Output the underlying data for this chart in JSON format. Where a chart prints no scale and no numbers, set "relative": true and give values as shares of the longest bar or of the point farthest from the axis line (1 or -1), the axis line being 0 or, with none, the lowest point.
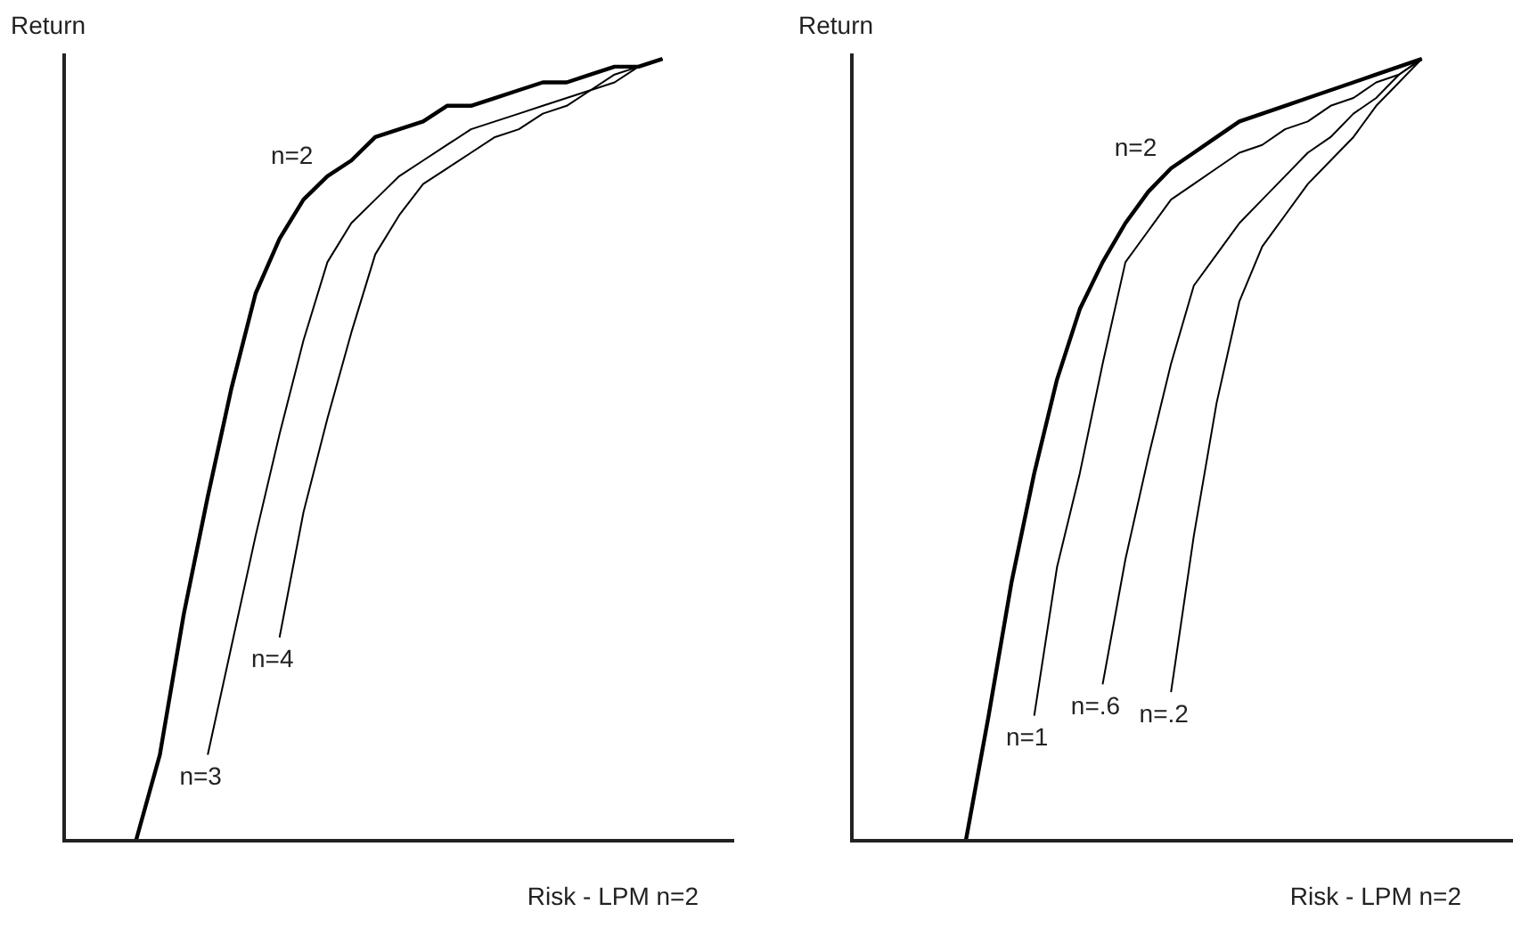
{
  "chart_data": [
    {
      "type": "line",
      "relative": true,
      "ylabel": "Return",
      "xlabel": "Risk - LPM n=2",
      "categories": [
        null,
        null,
        null,
        null,
        null,
        null,
        null,
        null,
        null,
        null,
        null,
        null,
        null,
        null,
        null,
        null,
        null,
        null,
        null,
        null,
        null,
        null,
        null,
        null,
        null,
        null,
        null,
        null,
        null
      ],
      "series": [
        {
          "name": "n=2",
          "color": "#000000",
          "values": [
            null,
            null,
            null,
            0,
            0.11,
            0.29,
            0.44,
            0.58,
            0.7,
            0.77,
            0.82,
            0.85,
            0.87,
            0.9,
            0.91,
            0.92,
            0.94,
            0.94,
            0.95,
            0.96,
            0.97,
            0.97,
            0.98,
            0.99,
            0.99,
            1,
            null,
            null,
            null
          ]
        },
        {
          "name": "n=3",
          "color": "#000000",
          "values": [
            null,
            null,
            null,
            null,
            null,
            null,
            0.11,
            0.25,
            0.39,
            0.52,
            0.64,
            0.74,
            0.79,
            0.82,
            0.85,
            0.87,
            0.89,
            0.91,
            0.92,
            0.93,
            0.94,
            0.95,
            0.96,
            0.98,
            0.99,
            1,
            null,
            null,
            null
          ]
        },
        {
          "name": "n=4",
          "color": "#000000",
          "values": [
            null,
            null,
            null,
            null,
            null,
            null,
            null,
            null,
            null,
            0.26,
            0.42,
            0.54,
            0.65,
            0.75,
            0.8,
            0.84,
            0.86,
            0.88,
            0.9,
            0.91,
            0.93,
            0.94,
            0.96,
            0.97,
            0.99,
            1,
            null,
            null,
            null
          ]
        }
      ]
    },
    {
      "type": "line",
      "relative": true,
      "ylabel": "Return",
      "xlabel": "Risk - LPM n=2",
      "categories": [
        null,
        null,
        null,
        null,
        null,
        null,
        null,
        null,
        null,
        null,
        null,
        null,
        null,
        null,
        null,
        null,
        null,
        null,
        null,
        null,
        null,
        null,
        null,
        null,
        null,
        null,
        null,
        null,
        null,
        null
      ],
      "series": [
        {
          "name": "n=2",
          "color": "#000000",
          "values": [
            null,
            null,
            null,
            null,
            null,
            0,
            0.16,
            0.33,
            0.47,
            0.59,
            0.68,
            0.74,
            0.79,
            0.83,
            0.86,
            0.88,
            0.9,
            0.92,
            0.93,
            0.94,
            0.95,
            0.96,
            0.97,
            0.98,
            0.99,
            1,
            null,
            null,
            null,
            null
          ]
        },
        {
          "name": "n=1",
          "color": "#000000",
          "values": [
            null,
            null,
            null,
            null,
            null,
            null,
            null,
            null,
            0.16,
            0.35,
            0.47,
            0.61,
            0.74,
            0.78,
            0.82,
            0.84,
            0.86,
            0.88,
            0.89,
            0.91,
            0.92,
            0.94,
            0.95,
            0.97,
            0.98,
            1,
            null,
            null,
            null,
            null
          ]
        },
        {
          "name": "n=.6",
          "color": "#000000",
          "values": [
            null,
            null,
            null,
            null,
            null,
            null,
            null,
            null,
            null,
            null,
            null,
            0.2,
            0.36,
            0.49,
            0.61,
            0.71,
            0.75,
            0.79,
            0.82,
            0.85,
            0.88,
            0.9,
            0.93,
            0.95,
            0.98,
            1,
            null,
            null,
            null,
            null
          ]
        },
        {
          "name": "n=.2",
          "color": "#000000",
          "values": [
            null,
            null,
            null,
            null,
            null,
            null,
            null,
            null,
            null,
            null,
            null,
            null,
            null,
            null,
            0.19,
            0.39,
            0.56,
            0.69,
            0.76,
            0.8,
            0.84,
            0.87,
            0.9,
            0.94,
            0.97,
            1,
            null,
            null,
            null,
            null
          ]
        }
      ]
    }
  ]
}
